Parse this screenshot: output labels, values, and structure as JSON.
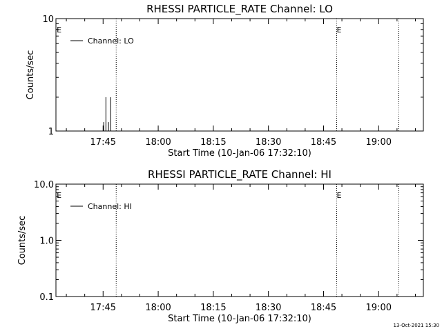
{
  "footer": {
    "timestamp": "13-Oct-2021 15:30"
  },
  "chart_data": [
    {
      "type": "line",
      "title": "RHESSI PARTICLE_RATE Channel: LO",
      "xlabel": "Start Time (10-Jan-06 17:32:10)",
      "ylabel": "Counts/sec",
      "x_unit": "minutes after 17:32:10",
      "xlim": [
        0,
        100
      ],
      "ylim": [
        1,
        10
      ],
      "yscale": "log",
      "x_ticks": [
        {
          "label": "17:45",
          "value": 12.833
        },
        {
          "label": "18:00",
          "value": 27.833
        },
        {
          "label": "18:15",
          "value": 42.833
        },
        {
          "label": "18:30",
          "value": 57.833
        },
        {
          "label": "18:45",
          "value": 72.833
        },
        {
          "label": "19:00",
          "value": 87.833
        }
      ],
      "y_ticks": [
        {
          "label": "10",
          "value": 10
        },
        {
          "label": "1",
          "value": 1
        }
      ],
      "legend": {
        "text": "Channel: LO",
        "position": "top-left"
      },
      "series": [
        {
          "name": "Channel: LO",
          "pulses": [
            {
              "x": 13.0,
              "y": 1.2
            },
            {
              "x": 13.6,
              "y": 2.0
            },
            {
              "x": 14.3,
              "y": 1.2
            },
            {
              "x": 14.9,
              "y": 2.0
            }
          ]
        }
      ],
      "markers": [
        {
          "label": "E",
          "x": 0.2
        },
        {
          "label": "E",
          "x": 76.4
        }
      ],
      "vlines": [
        16.4,
        76.4,
        93.3
      ]
    },
    {
      "type": "line",
      "title": "RHESSI PARTICLE_RATE Channel: HI",
      "xlabel": "Start Time (10-Jan-06 17:32:10)",
      "ylabel": "Counts/sec",
      "x_unit": "minutes after 17:32:10",
      "xlim": [
        0,
        100
      ],
      "ylim": [
        0.1,
        10
      ],
      "yscale": "log",
      "x_ticks": [
        {
          "label": "17:45",
          "value": 12.833
        },
        {
          "label": "18:00",
          "value": 27.833
        },
        {
          "label": "18:15",
          "value": 42.833
        },
        {
          "label": "18:30",
          "value": 57.833
        },
        {
          "label": "18:45",
          "value": 72.833
        },
        {
          "label": "19:00",
          "value": 87.833
        }
      ],
      "y_ticks": [
        {
          "label": "10.0",
          "value": 10
        },
        {
          "label": "1.0",
          "value": 1
        },
        {
          "label": "0.1",
          "value": 0.1
        }
      ],
      "legend": {
        "text": "Channel: HI",
        "position": "top-left"
      },
      "series": [
        {
          "name": "Channel: HI",
          "pulses": []
        }
      ],
      "markers": [
        {
          "label": "E",
          "x": 0.2
        },
        {
          "label": "E",
          "x": 76.4
        }
      ],
      "vlines": [
        16.4,
        76.4,
        93.3
      ]
    }
  ]
}
